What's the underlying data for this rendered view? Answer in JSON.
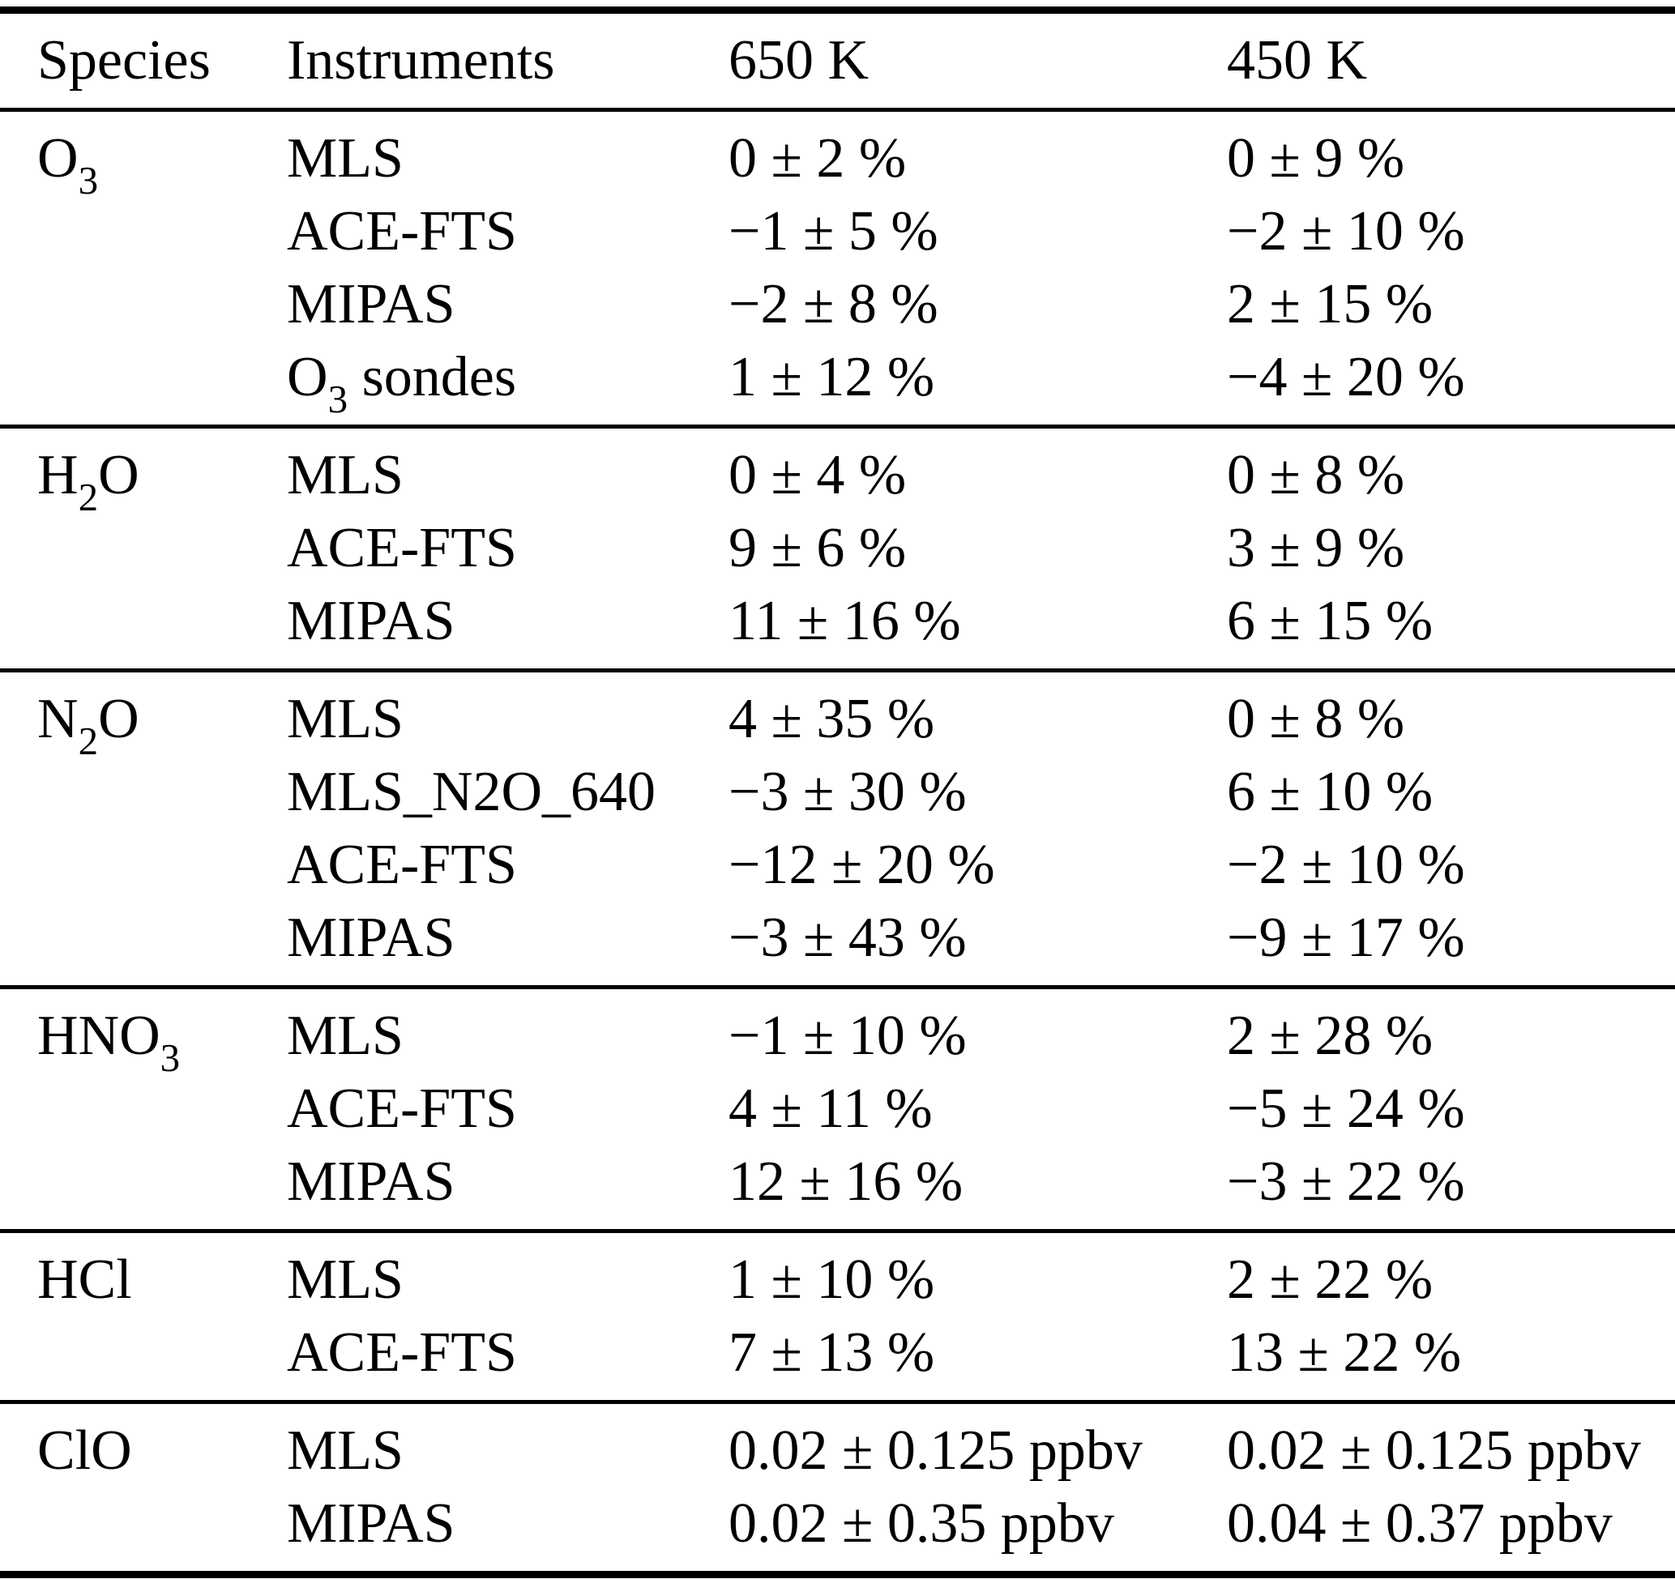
{
  "table": {
    "columns": [
      "Species",
      "Instruments",
      "650 K",
      "450 K"
    ],
    "sections": [
      {
        "species": [
          {
            "t": "O"
          },
          {
            "t": "3",
            "sub": true
          }
        ],
        "rows": [
          {
            "instrument": [
              {
                "t": "MLS"
              }
            ],
            "v650": "0 ± 2 %",
            "v450": "0 ± 9 %"
          },
          {
            "instrument": [
              {
                "t": "ACE-FTS"
              }
            ],
            "v650": "−1 ± 5 %",
            "v450": "−2 ± 10 %"
          },
          {
            "instrument": [
              {
                "t": "MIPAS"
              }
            ],
            "v650": "−2 ± 8 %",
            "v450": "2 ± 15 %"
          },
          {
            "instrument": [
              {
                "t": "O"
              },
              {
                "t": "3",
                "sub": true
              },
              {
                "t": " sondes"
              }
            ],
            "v650": "1 ± 12 %",
            "v450": "−4 ± 20 %"
          }
        ]
      },
      {
        "species": [
          {
            "t": "H"
          },
          {
            "t": "2",
            "sub": true
          },
          {
            "t": "O"
          }
        ],
        "rows": [
          {
            "instrument": [
              {
                "t": "MLS"
              }
            ],
            "v650": "0 ± 4 %",
            "v450": "0 ± 8 %"
          },
          {
            "instrument": [
              {
                "t": "ACE-FTS"
              }
            ],
            "v650": "9 ± 6 %",
            "v450": "3 ± 9 %"
          },
          {
            "instrument": [
              {
                "t": "MIPAS"
              }
            ],
            "v650": "11 ± 16 %",
            "v450": "6 ± 15 %"
          }
        ]
      },
      {
        "species": [
          {
            "t": "N"
          },
          {
            "t": "2",
            "sub": true
          },
          {
            "t": "O"
          }
        ],
        "rows": [
          {
            "instrument": [
              {
                "t": "MLS"
              }
            ],
            "v650": "4 ± 35 %",
            "v450": "0 ± 8 %"
          },
          {
            "instrument": [
              {
                "t": "MLS_N2O_640"
              }
            ],
            "v650": "−3 ± 30 %",
            "v450": "6 ± 10 %"
          },
          {
            "instrument": [
              {
                "t": "ACE-FTS"
              }
            ],
            "v650": "−12 ± 20 %",
            "v450": "−2 ± 10 %"
          },
          {
            "instrument": [
              {
                "t": "MIPAS"
              }
            ],
            "v650": "−3 ± 43 %",
            "v450": "−9 ± 17 %"
          }
        ]
      },
      {
        "species": [
          {
            "t": "HNO"
          },
          {
            "t": "3",
            "sub": true
          }
        ],
        "rows": [
          {
            "instrument": [
              {
                "t": "MLS"
              }
            ],
            "v650": "−1 ± 10 %",
            "v450": "2 ± 28 %"
          },
          {
            "instrument": [
              {
                "t": "ACE-FTS"
              }
            ],
            "v650": "4 ± 11 %",
            "v450": "−5 ± 24 %"
          },
          {
            "instrument": [
              {
                "t": "MIPAS"
              }
            ],
            "v650": "12 ± 16 %",
            "v450": "−3 ± 22 %"
          }
        ]
      },
      {
        "species": [
          {
            "t": "HCl"
          }
        ],
        "rows": [
          {
            "instrument": [
              {
                "t": "MLS"
              }
            ],
            "v650": "1 ± 10 %",
            "v450": "2 ± 22 %"
          },
          {
            "instrument": [
              {
                "t": "ACE-FTS"
              }
            ],
            "v650": "7 ± 13 %",
            "v450": "13 ± 22 %"
          }
        ]
      },
      {
        "species": [
          {
            "t": "ClO"
          }
        ],
        "rows": [
          {
            "instrument": [
              {
                "t": "MLS"
              }
            ],
            "v650": "0.02 ± 0.125 ppbv",
            "v450": "0.02 ± 0.125 ppbv"
          },
          {
            "instrument": [
              {
                "t": "MIPAS"
              }
            ],
            "v650": "0.02 ± 0.35 ppbv",
            "v450": "0.04 ± 0.37 ppbv"
          }
        ]
      }
    ]
  }
}
